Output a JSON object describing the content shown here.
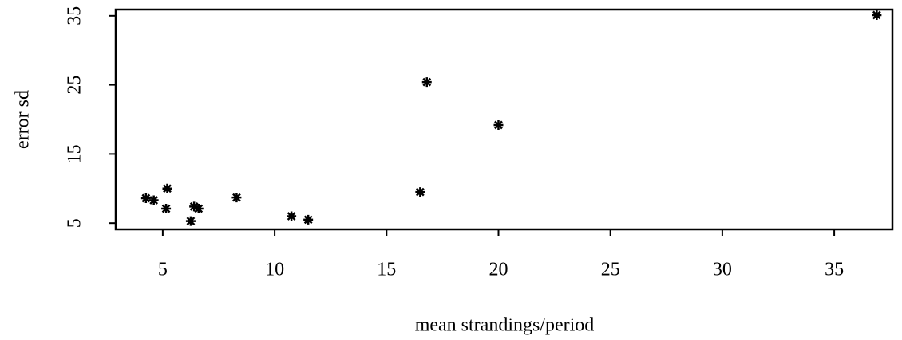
{
  "chart_data": {
    "type": "scatter",
    "x_label": "mean strandings/period",
    "y_label": "error sd",
    "x": [
      4.25,
      4.6,
      5.2,
      5.15,
      6.25,
      6.4,
      6.6,
      8.3,
      10.75,
      11.5,
      16.5,
      16.8,
      20.0,
      36.9
    ],
    "values": [
      8.6,
      8.3,
      10.0,
      7.1,
      5.3,
      7.4,
      7.1,
      8.7,
      6.0,
      5.5,
      9.5,
      25.4,
      19.2,
      35.1
    ],
    "color": "#000000",
    "xlim": [
      2.9,
      37.6
    ],
    "ylim": [
      4.1,
      35.9
    ],
    "xticks": [
      5,
      10,
      15,
      20,
      25,
      30,
      35
    ],
    "yticks": [
      5,
      15,
      25,
      35
    ]
  }
}
